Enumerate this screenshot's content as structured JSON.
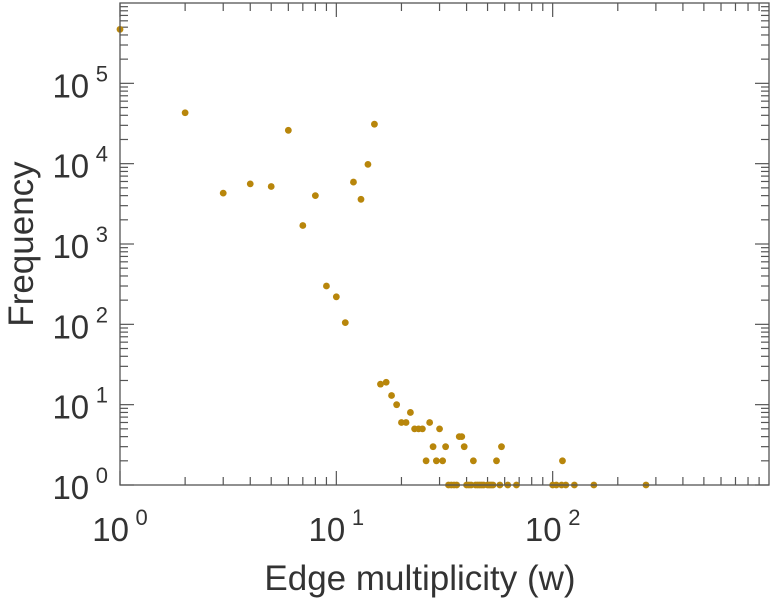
{
  "chart_data": {
    "type": "scatter",
    "xlabel": "Edge multiplicity (w)",
    "ylabel": "Frequency",
    "xscale": "log",
    "yscale": "log",
    "xlim": [
      1,
      1000
    ],
    "ylim": [
      1,
      1000000
    ],
    "x_ticks": [
      {
        "value": 1,
        "base": "10",
        "exp": "0"
      },
      {
        "value": 10,
        "base": "10",
        "exp": "1"
      },
      {
        "value": 100,
        "base": "10",
        "exp": "2"
      }
    ],
    "y_ticks": [
      {
        "value": 1,
        "base": "10",
        "exp": "0"
      },
      {
        "value": 10,
        "base": "10",
        "exp": "1"
      },
      {
        "value": 100,
        "base": "10",
        "exp": "2"
      },
      {
        "value": 1000,
        "base": "10",
        "exp": "3"
      },
      {
        "value": 10000,
        "base": "10",
        "exp": "4"
      },
      {
        "value": 100000,
        "base": "10",
        "exp": "5"
      }
    ],
    "grid": false,
    "marker_color": "#b8860b",
    "points": [
      [
        1,
        470000
      ],
      [
        2,
        43000
      ],
      [
        3,
        4300
      ],
      [
        4,
        5600
      ],
      [
        5,
        5200
      ],
      [
        6,
        26000
      ],
      [
        7,
        1700
      ],
      [
        8,
        4000
      ],
      [
        9,
        300
      ],
      [
        10,
        220
      ],
      [
        11,
        105
      ],
      [
        12,
        5900
      ],
      [
        13,
        3600
      ],
      [
        14,
        9800
      ],
      [
        15,
        31000
      ],
      [
        16,
        18
      ],
      [
        17,
        19
      ],
      [
        18,
        13
      ],
      [
        19,
        10
      ],
      [
        20,
        6
      ],
      [
        21,
        6
      ],
      [
        22,
        8
      ],
      [
        23,
        5
      ],
      [
        24,
        5
      ],
      [
        25,
        5
      ],
      [
        26,
        2
      ],
      [
        27,
        6
      ],
      [
        28,
        3
      ],
      [
        29,
        2
      ],
      [
        30,
        5
      ],
      [
        31,
        2
      ],
      [
        32,
        3
      ],
      [
        33,
        1
      ],
      [
        34,
        1
      ],
      [
        35,
        1
      ],
      [
        36,
        1
      ],
      [
        37,
        4
      ],
      [
        38,
        4
      ],
      [
        39,
        3
      ],
      [
        40,
        1
      ],
      [
        41,
        1
      ],
      [
        42,
        1
      ],
      [
        43,
        2
      ],
      [
        44,
        1
      ],
      [
        45,
        1
      ],
      [
        46,
        1
      ],
      [
        47,
        1
      ],
      [
        48,
        1
      ],
      [
        50,
        1
      ],
      [
        51,
        1
      ],
      [
        52,
        1
      ],
      [
        53,
        1
      ],
      [
        55,
        2
      ],
      [
        57,
        1
      ],
      [
        58,
        3
      ],
      [
        62,
        1
      ],
      [
        68,
        1
      ],
      [
        100,
        1
      ],
      [
        104,
        1
      ],
      [
        110,
        1
      ],
      [
        111,
        2
      ],
      [
        115,
        1
      ],
      [
        126,
        1
      ],
      [
        155,
        1
      ],
      [
        270,
        1
      ]
    ]
  }
}
